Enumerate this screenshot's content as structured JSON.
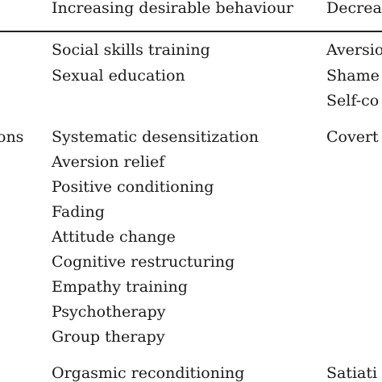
{
  "table": {
    "headers": {
      "col1": "Increasing desirable behaviour",
      "col2": "Decrea"
    },
    "groups": [
      {
        "row_label": "",
        "col1_items": [
          "Social skills training",
          "Sexual education"
        ],
        "col2_items": [
          "Aversio",
          "Shame",
          "Self-co"
        ]
      },
      {
        "row_label": "ons",
        "col1_items": [
          "Systematic desensitization",
          "Aversion relief",
          "Positive conditioning",
          "Fading",
          "Attitude change",
          "Cognitive restructuring",
          "Empathy training",
          "Psychotherapy",
          "Group therapy"
        ],
        "col2_items": [
          "Covert"
        ]
      },
      {
        "row_label": "",
        "col1_items": [
          "Orgasmic reconditioning"
        ],
        "col2_items": [
          "Satiati"
        ]
      }
    ]
  }
}
